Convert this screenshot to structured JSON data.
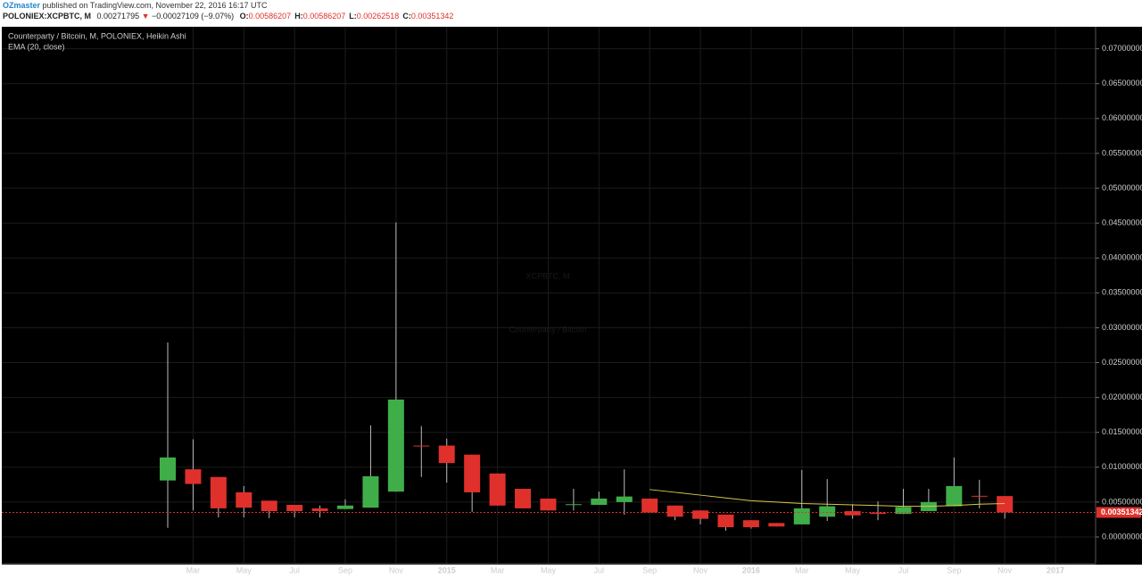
{
  "header": {
    "author": "OZmaster",
    "published": "published on TradingView.com, November 22, 2016 16:17 UTC",
    "symbol": "POLONIEX:XCPBTC, M",
    "last": "0.00271795",
    "change": "−0.00027109 (−9.07%)",
    "ohlc": [
      {
        "label": "O:",
        "value": "0.00586207"
      },
      {
        "label": "H:",
        "value": "0.00586207"
      },
      {
        "label": "L:",
        "value": "0.00262518"
      },
      {
        "label": "C:",
        "value": "0.00351342"
      }
    ]
  },
  "chart_data": {
    "type": "candlestick",
    "legend": [
      "Counterparty / Bitcoin, M, POLONIEX, Heikin Ashi",
      "EMA (20, close)"
    ],
    "watermark": [
      "XCPBTC, M",
      "Counterparty / Bitcoin"
    ],
    "categories": [
      null,
      "Mar",
      null,
      "May",
      null,
      "Jul",
      null,
      "Sep",
      null,
      "Nov",
      null,
      "2015",
      null,
      "Mar",
      null,
      "May",
      null,
      "Jul",
      null,
      "Sep",
      null,
      "Nov",
      null,
      "2016",
      null,
      "Mar",
      null,
      "May",
      null,
      "Jul",
      null,
      "Sep",
      null,
      "Nov",
      null,
      "2017"
    ],
    "open": [
      0.0081,
      0.0097,
      0.0086,
      0.0064,
      0.0052,
      0.0046,
      0.0041,
      0.004,
      0.0042,
      0.0065,
      0.0131,
      0.0131,
      0.0118,
      0.0091,
      0.0069,
      0.0055,
      0.0046,
      0.0046,
      0.005,
      0.0055,
      0.0045,
      0.0038,
      0.0032,
      0.0024,
      0.002,
      0.0018,
      0.0029,
      0.0037,
      0.0035,
      0.0033,
      0.0037,
      0.0044,
      0.0059,
      0.00586207,
      null,
      null
    ],
    "high": [
      0.0279,
      0.014,
      0.0086,
      0.0073,
      0.0052,
      0.0046,
      0.0045,
      0.0054,
      0.016,
      0.0451,
      0.0159,
      0.0141,
      0.0118,
      0.0091,
      0.0069,
      0.0055,
      0.0069,
      0.0065,
      0.0097,
      0.0055,
      0.0045,
      0.0038,
      0.0032,
      0.0024,
      0.002,
      0.0096,
      0.0083,
      0.0047,
      0.0051,
      0.0069,
      0.0069,
      0.0114,
      0.0082,
      0.00586207,
      null,
      null
    ],
    "low": [
      0.0013,
      0.0038,
      0.0028,
      0.0028,
      0.0027,
      0.0028,
      0.0028,
      0.004,
      0.0042,
      0.0065,
      0.0086,
      0.0078,
      0.0036,
      0.0045,
      0.0041,
      0.0038,
      0.0038,
      0.0046,
      0.0032,
      0.0035,
      0.0024,
      0.0018,
      0.0009,
      0.0012,
      0.0015,
      0.0018,
      0.0023,
      0.0026,
      0.0024,
      0.0033,
      0.0037,
      0.0044,
      0.0041,
      0.00262518,
      null,
      null
    ],
    "close": [
      0.0114,
      0.0076,
      0.0041,
      0.0042,
      0.0037,
      0.0037,
      0.0037,
      0.0045,
      0.0087,
      0.0197,
      0.013,
      0.0106,
      0.0064,
      0.0045,
      0.0041,
      0.0038,
      0.0047,
      0.0055,
      0.0058,
      0.0035,
      0.0029,
      0.0026,
      0.0014,
      0.0014,
      0.0015,
      0.0041,
      0.0044,
      0.0031,
      0.0033,
      0.0043,
      0.005,
      0.0073,
      0.0058,
      0.00351342,
      null,
      null
    ],
    "ema": {
      "name": "EMA (20, close)",
      "color": "#d8c84a",
      "values": [
        null,
        null,
        null,
        null,
        null,
        null,
        null,
        null,
        null,
        null,
        null,
        null,
        null,
        null,
        null,
        null,
        null,
        null,
        null,
        0.0068,
        0.0064,
        0.006,
        0.0056,
        0.0052,
        0.005,
        0.0048,
        0.0047,
        0.0046,
        0.0045,
        0.0044,
        0.0044,
        0.0045,
        0.0047,
        0.0048,
        null,
        null
      ]
    },
    "up_color": "#3fae49",
    "down_color": "#e0302b",
    "wick_color": "#bbbbbb",
    "last_price": 0.00351342,
    "ylim": [
      -0.00384,
      0.0729
    ],
    "yticks": [
      {
        "value": 0,
        "label": "0.00000000"
      },
      {
        "value": 0.005,
        "label": "0.00500000"
      },
      {
        "value": 0.01,
        "label": "0.01000000"
      },
      {
        "value": 0.015,
        "label": "0.01500000"
      },
      {
        "value": 0.02,
        "label": "0.02000000"
      },
      {
        "value": 0.025,
        "label": "0.02500000"
      },
      {
        "value": 0.03,
        "label": "0.03000000"
      },
      {
        "value": 0.035,
        "label": "0.03500000"
      },
      {
        "value": 0.04,
        "label": "0.04000000"
      },
      {
        "value": 0.045,
        "label": "0.04500000"
      },
      {
        "value": 0.05,
        "label": "0.05000000"
      },
      {
        "value": 0.055,
        "label": "0.05500000"
      },
      {
        "value": 0.06,
        "label": "0.06000000"
      },
      {
        "value": 0.065,
        "label": "0.06500000"
      },
      {
        "value": 0.07,
        "label": "0.07000000"
      }
    ],
    "grid": true
  }
}
